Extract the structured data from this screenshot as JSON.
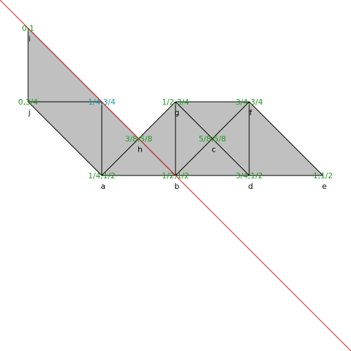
{
  "nodes": [
    {
      "coord": "0,1",
      "name": "i"
    },
    {
      "coord": "0,3/4",
      "name": "j"
    },
    {
      "coord": "1/4,3/4"
    },
    {
      "coord": "1/4,1/2",
      "name": "a"
    },
    {
      "coord": "3/8,5/8",
      "name": "h"
    },
    {
      "coord": "1/2,3/4",
      "name": "g"
    },
    {
      "coord": "1/2,1/2",
      "name": "b"
    },
    {
      "coord": "5/8,5/8",
      "name": "c"
    },
    {
      "coord": "3/4,3/4",
      "name": "f"
    },
    {
      "coord": "3/4,1/2",
      "name": "d"
    },
    {
      "coord": "1,1/2",
      "name": "e"
    }
  ]
}
